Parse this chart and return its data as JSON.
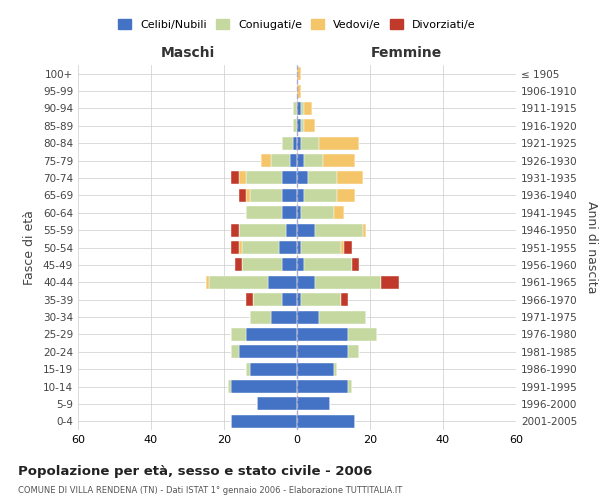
{
  "age_groups": [
    "0-4",
    "5-9",
    "10-14",
    "15-19",
    "20-24",
    "25-29",
    "30-34",
    "35-39",
    "40-44",
    "45-49",
    "50-54",
    "55-59",
    "60-64",
    "65-69",
    "70-74",
    "75-79",
    "80-84",
    "85-89",
    "90-94",
    "95-99",
    "100+"
  ],
  "birth_years": [
    "2001-2005",
    "1996-2000",
    "1991-1995",
    "1986-1990",
    "1981-1985",
    "1976-1980",
    "1971-1975",
    "1966-1970",
    "1961-1965",
    "1956-1960",
    "1951-1955",
    "1946-1950",
    "1941-1945",
    "1936-1940",
    "1931-1935",
    "1926-1930",
    "1921-1925",
    "1916-1920",
    "1911-1915",
    "1906-1910",
    "≤ 1905"
  ],
  "maschi_celibi": [
    18,
    11,
    18,
    13,
    16,
    14,
    7,
    4,
    8,
    4,
    5,
    3,
    4,
    4,
    4,
    2,
    1,
    0,
    0,
    0,
    0
  ],
  "maschi_coniugati": [
    0,
    0,
    1,
    1,
    2,
    4,
    6,
    8,
    16,
    11,
    10,
    13,
    10,
    9,
    10,
    5,
    3,
    1,
    1,
    0,
    0
  ],
  "maschi_vedovi": [
    0,
    0,
    0,
    0,
    0,
    0,
    0,
    0,
    1,
    0,
    1,
    0,
    0,
    1,
    2,
    3,
    0,
    0,
    0,
    0,
    0
  ],
  "maschi_divorziati": [
    0,
    0,
    0,
    0,
    0,
    0,
    0,
    2,
    0,
    2,
    2,
    2,
    0,
    2,
    2,
    0,
    0,
    0,
    0,
    0,
    0
  ],
  "femmine_celibi": [
    16,
    9,
    14,
    10,
    14,
    14,
    6,
    1,
    5,
    2,
    1,
    5,
    1,
    2,
    3,
    2,
    1,
    1,
    1,
    0,
    0
  ],
  "femmine_coniugati": [
    0,
    0,
    1,
    1,
    3,
    8,
    13,
    11,
    18,
    13,
    11,
    13,
    9,
    9,
    8,
    5,
    5,
    1,
    1,
    0,
    0
  ],
  "femmine_vedovi": [
    0,
    0,
    0,
    0,
    0,
    0,
    0,
    0,
    0,
    0,
    1,
    1,
    3,
    5,
    7,
    9,
    11,
    3,
    2,
    1,
    1
  ],
  "femmine_divorziati": [
    0,
    0,
    0,
    0,
    0,
    0,
    0,
    2,
    5,
    2,
    2,
    0,
    0,
    0,
    0,
    0,
    0,
    0,
    0,
    0,
    0
  ],
  "color_celibi": "#4472c4",
  "color_coniugati": "#c5d8a0",
  "color_vedovi": "#f5c56a",
  "color_divorziati": "#c0392b",
  "title": "Popolazione per età, sesso e stato civile - 2006",
  "subtitle": "COMUNE DI VILLA RENDENA (TN) - Dati ISTAT 1° gennaio 2006 - Elaborazione TUTTITALIA.IT",
  "ylabel_left": "Fasce di età",
  "ylabel_right": "Anni di nascita",
  "header_maschi": "Maschi",
  "header_femmine": "Femmine",
  "xlim": 60,
  "bg_color": "#ffffff",
  "grid_color": "#cccccc",
  "legend_labels": [
    "Celibi/Nubili",
    "Coniugati/e",
    "Vedovi/e",
    "Divorziati/e"
  ]
}
